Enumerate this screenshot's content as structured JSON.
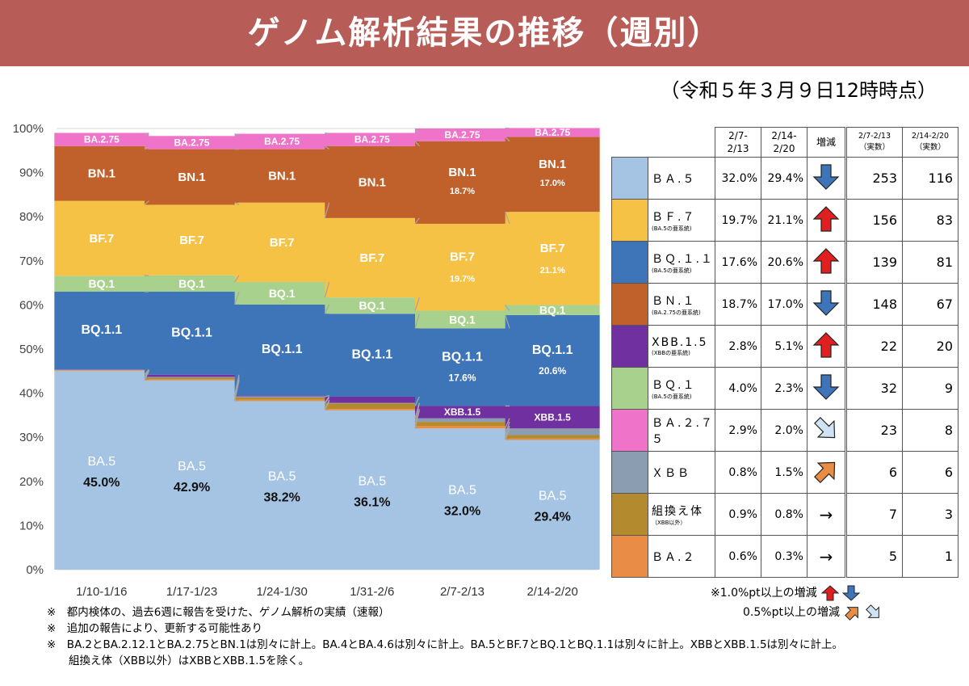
{
  "title": "ゲノム解析結果の推移（週別）",
  "timestamp": "（令和５年３月９日12時時点）",
  "colors": {
    "BA.5": "#a5c4e4",
    "BA.2": "#e98c45",
    "組換え体": "#b48a2e",
    "XBB": "#8a9db1",
    "XBB.1.5": "#7030a0",
    "BQ.1.1": "#3e74b8",
    "BQ.1": "#a9d18e",
    "BF.7": "#f5c245",
    "BN.1": "#c0612c",
    "BA.2.75": "#ef74c9",
    "banner": "#b85c57"
  },
  "chart_data": {
    "type": "bar",
    "stacked": true,
    "categories": [
      "1/10-1/16",
      "1/17-1/23",
      "1/24-1/30",
      "1/31-2/6",
      "2/7-2/13",
      "2/14-2/20"
    ],
    "ylim": [
      0,
      100
    ],
    "yticks": [
      "0%",
      "10%",
      "20%",
      "30%",
      "40%",
      "50%",
      "60%",
      "70%",
      "80%",
      "90%",
      "100%"
    ],
    "grid": true,
    "series": [
      {
        "name": "BA.5",
        "values": [
          45.0,
          42.9,
          38.2,
          36.1,
          32.0,
          29.4
        ]
      },
      {
        "name": "BA.2",
        "values": [
          0.1,
          0.2,
          0.3,
          0.3,
          0.6,
          0.3
        ]
      },
      {
        "name": "組換え体",
        "values": [
          0.1,
          0.4,
          0.5,
          1.3,
          0.9,
          0.8
        ]
      },
      {
        "name": "XBB",
        "values": [
          0.1,
          0.2,
          0.3,
          0.1,
          0.8,
          1.5
        ]
      },
      {
        "name": "XBB.1.5",
        "values": [
          0.1,
          0.5,
          0.2,
          1.4,
          2.8,
          5.1
        ]
      },
      {
        "name": "BQ.1.1",
        "values": [
          17.6,
          18.8,
          20.6,
          18.8,
          17.6,
          20.6
        ]
      },
      {
        "name": "BQ.1",
        "values": [
          3.6,
          3.7,
          5.1,
          3.7,
          4.0,
          2.3
        ]
      },
      {
        "name": "BF.7",
        "values": [
          17.0,
          16.0,
          18.0,
          18.0,
          19.7,
          21.1
        ]
      },
      {
        "name": "BN.1",
        "values": [
          12.4,
          12.6,
          12.1,
          16.3,
          18.7,
          17.0
        ]
      },
      {
        "name": "BA.2.75",
        "values": [
          3.0,
          3.0,
          3.5,
          3.0,
          2.9,
          2.0
        ]
      },
      {
        "name": "",
        "values": [
          1.0,
          1.7,
          1.2,
          1.0,
          1.0,
          0.0
        ]
      }
    ],
    "segment_labels": {
      "BA.5": [
        "BA.5",
        "BA.5",
        "BA.5",
        "BA.5",
        "BA.5",
        "BA.5"
      ],
      "BA.5_pct": [
        "45.0%",
        "42.9%",
        "38.2%",
        "36.1%",
        "32.0%",
        "29.4%"
      ],
      "XBB.1.5": [
        "",
        "",
        "",
        "",
        "XBB.1.5",
        "XBB.1.5"
      ],
      "BQ.1.1": [
        "BQ.1.1",
        "BQ.1.1",
        "BQ.1.1",
        "BQ.1.1",
        "BQ.1.1",
        "BQ.1.1"
      ],
      "BQ.1.1_pct": [
        "",
        "",
        "",
        "",
        "17.6%",
        "20.6%"
      ],
      "BQ.1": [
        "BQ.1",
        "BQ.1",
        "BQ.1",
        "BQ.1",
        "BQ.1",
        "BQ.1"
      ],
      "BF.7": [
        "BF.7",
        "BF.7",
        "BF.7",
        "BF.7",
        "BF.7",
        "BF.7"
      ],
      "BF.7_pct": [
        "",
        "",
        "",
        "",
        "19.7%",
        "21.1%"
      ],
      "BN.1": [
        "BN.1",
        "BN.1",
        "BN.1",
        "BN.1",
        "BN.1",
        "BN.1"
      ],
      "BN.1_pct": [
        "",
        "",
        "",
        "",
        "18.7%",
        "17.0%"
      ],
      "BA.2.75": [
        "BA.2.75",
        "BA.2.75",
        "BA.2.75",
        "BA.2.75",
        "BA.2.75",
        "BA.2.75"
      ]
    }
  },
  "table": {
    "headers": {
      "col_prev": "2/7-\n2/13",
      "col_curr": "2/14-\n2/20",
      "col_change": "増減",
      "count_prev": "2/7-2/13\n（実数）",
      "count_curr": "2/14-2/20\n（実数）"
    },
    "rows": [
      {
        "key": "BA.5",
        "name": "ＢＡ.５",
        "sub": "",
        "prev": "32.0%",
        "curr": "29.4%",
        "change": "down-big",
        "n_prev": "253",
        "n_curr": "116"
      },
      {
        "key": "BF.7",
        "name": "ＢＦ.７",
        "sub": "(BA.5の亜系統)",
        "prev": "19.7%",
        "curr": "21.1%",
        "change": "up-big",
        "n_prev": "156",
        "n_curr": "83"
      },
      {
        "key": "BQ.1.1",
        "name": "ＢＱ.１.１",
        "sub": "(BA.5の亜系統)",
        "prev": "17.6%",
        "curr": "20.6%",
        "change": "up-big",
        "n_prev": "139",
        "n_curr": "81"
      },
      {
        "key": "BN.1",
        "name": "ＢＮ.１",
        "sub": "(BA.2.75の亜系統)",
        "prev": "18.7%",
        "curr": "17.0%",
        "change": "down-big",
        "n_prev": "148",
        "n_curr": "67"
      },
      {
        "key": "XBB.1.5",
        "name": "XBB.1.5",
        "sub": "(XBBの亜系統)",
        "prev": "2.8%",
        "curr": "5.1%",
        "change": "up-big",
        "n_prev": "22",
        "n_curr": "20"
      },
      {
        "key": "BQ.1",
        "name": "ＢＱ.１",
        "sub": "(BA.5の亜系統)",
        "prev": "4.0%",
        "curr": "2.3%",
        "change": "down-big",
        "n_prev": "32",
        "n_curr": "9"
      },
      {
        "key": "BA.2.75",
        "name": "ＢＡ.２.７５",
        "sub": "",
        "prev": "2.9%",
        "curr": "2.0%",
        "change": "down-small",
        "n_prev": "23",
        "n_curr": "8"
      },
      {
        "key": "XBB",
        "name": "ＸＢＢ",
        "sub": "",
        "prev": "0.8%",
        "curr": "1.5%",
        "change": "up-small",
        "n_prev": "6",
        "n_curr": "6"
      },
      {
        "key": "組換え体",
        "name": "組換え体",
        "sub": "（XBB以外）",
        "prev": "0.9%",
        "curr": "0.8%",
        "change": "flat",
        "n_prev": "7",
        "n_curr": "3"
      },
      {
        "key": "BA.2",
        "name": "ＢＡ.２",
        "sub": "",
        "prev": "0.6%",
        "curr": "0.3%",
        "change": "flat",
        "n_prev": "5",
        "n_curr": "1"
      }
    ]
  },
  "legend": {
    "big": "※1.0%pt以上の増減",
    "small": "0.5%pt以上の増減"
  },
  "notes": [
    "※　都内検体の、過去6週に報告を受けた、ゲノム解析の実績（速報）",
    "※　追加の報告により、更新する可能性あり",
    "※　BA.2とBA.2.12.1とBA.2.75とBN.1は別々に計上。BA.4とBA.4.6は別々に計上。BA.5とBF.7とBQ.1とBQ.1.1は別々に計上。XBBとXBB.1.5は別々に計上。",
    "　　組換え体（XBB以外）はXBBとXBB.1.5を除く。"
  ]
}
